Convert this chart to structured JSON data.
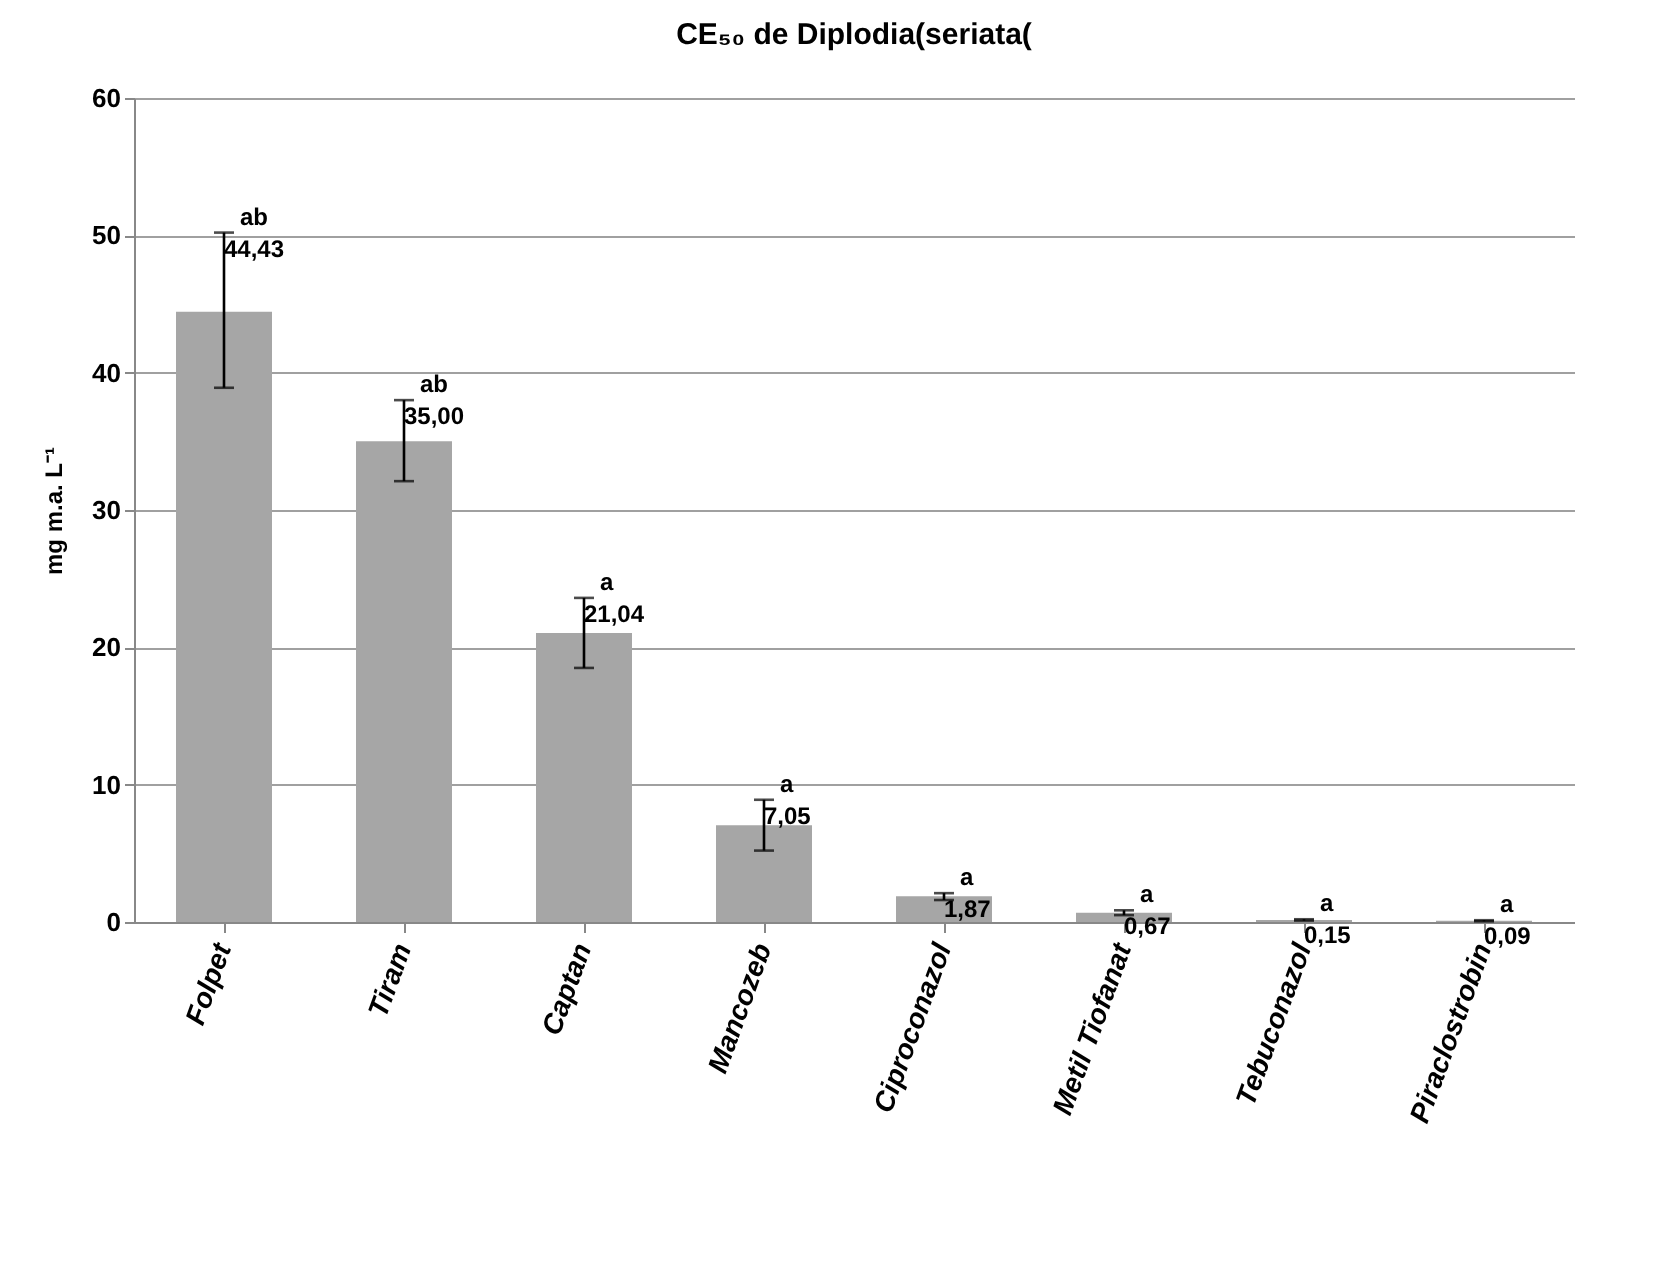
{
  "chart_data": {
    "type": "bar",
    "title": "CE₅₀ de Diplodia(seriata(",
    "ylabel": "mg m.a. L⁻¹",
    "categories": [
      "Folpet",
      "Tiram",
      "Captan",
      "Mancozeb",
      "Ciproconazol",
      "Metil Tiofanat",
      "Tebuconazol",
      "Piraclostrobin"
    ],
    "values": [
      44.43,
      35.0,
      21.04,
      7.05,
      1.87,
      0.67,
      0.15,
      0.09
    ],
    "color": "#a6a6a6",
    "errors": [
      [
        38.9,
        50.2
      ],
      [
        32.1,
        38.0
      ],
      [
        18.5,
        23.6
      ],
      [
        5.2,
        8.9
      ],
      [
        1.6,
        2.1
      ],
      [
        0.5,
        0.85
      ],
      [
        0.1,
        0.2
      ],
      [
        0.05,
        0.13
      ]
    ],
    "value_labels": [
      "44,43",
      "35,00",
      "21,04",
      "7,05",
      "1,87",
      "0,67",
      "0,15",
      "0,09"
    ],
    "annotations": [
      {
        "text": "ab",
        "x": "Folpet",
        "y": 50.2
      },
      {
        "text": "ab",
        "x": "Tiram",
        "y": 38.0
      },
      {
        "text": "a",
        "x": "Captan",
        "y": 23.6
      },
      {
        "text": "a",
        "x": "Mancozeb",
        "y": 8.9
      },
      {
        "text": "a",
        "x": "Ciproconazol",
        "y": 2.1
      },
      {
        "text": "a",
        "x": "Metil Tiofanat",
        "y": 0.85
      },
      {
        "text": "a",
        "x": "Tebuconazol",
        "y": 0.2
      },
      {
        "text": "a",
        "x": "Piraclostrobin",
        "y": 0.13
      }
    ],
    "ylim": [
      0,
      60
    ],
    "yticks": [
      0,
      10,
      20,
      30,
      40,
      50,
      60
    ],
    "grid": "y"
  }
}
